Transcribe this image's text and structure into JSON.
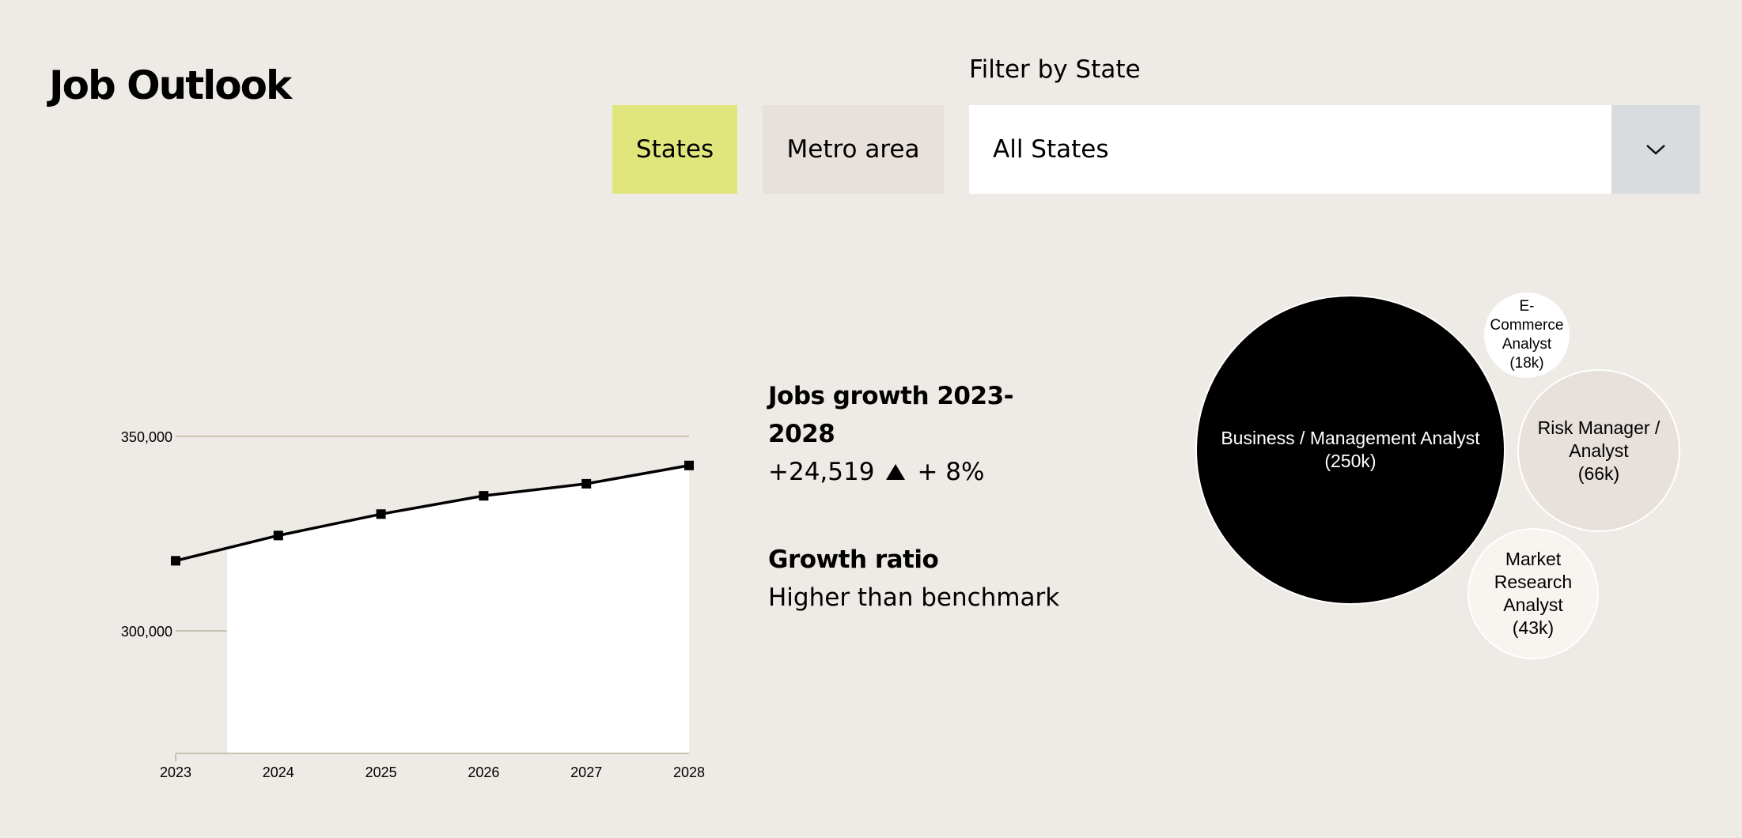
{
  "header": {
    "title": "Job Outlook",
    "toggle": {
      "states_label": "States",
      "metro_label": "Metro area",
      "active": "States"
    },
    "filter": {
      "label": "Filter by State",
      "selected": "All States"
    }
  },
  "colors": {
    "background": "#eeeae5",
    "active_toggle": "#e0e67c",
    "inactive_toggle": "#e7e0db",
    "select_arrow_bg": "#d8dcde"
  },
  "icons": {
    "dropdown": "chevron-down-icon",
    "trend": "triangle-up-icon"
  },
  "stats": {
    "growth_heading": "Jobs growth 2023-2028",
    "growth_value": "+24,519",
    "growth_percent": "+ 8%",
    "ratio_heading": "Growth ratio",
    "ratio_value": "Higher than benchmark"
  },
  "chart_data": [
    {
      "type": "area",
      "x": [
        "2023",
        "2024",
        "2025",
        "2026",
        "2027",
        "2028"
      ],
      "values": [
        318000,
        324500,
        330000,
        334700,
        337800,
        342500
      ],
      "y_ticks": [
        "300,000",
        "350,000"
      ],
      "y_tick_values": [
        300000,
        350000
      ],
      "ylim": [
        268500,
        358500
      ],
      "grid": true
    },
    {
      "type": "bubble",
      "labels": [
        "Business / Management Analyst\n(250k)",
        "E-\nCommerce\nAnalyst\n(18k)",
        "Risk Manager /\nAnalyst\n(66k)",
        "Market\nResearch\nAnalyst\n(43k)"
      ],
      "values": [
        250,
        18,
        66,
        43
      ]
    }
  ]
}
